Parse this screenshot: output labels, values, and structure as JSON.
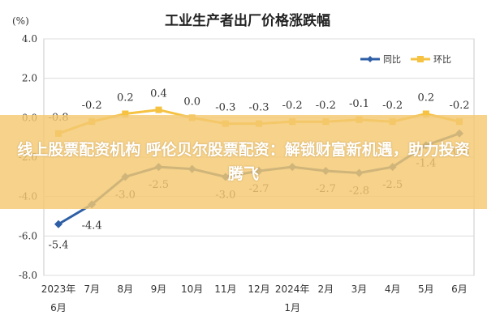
{
  "chart_data": {
    "type": "line",
    "title": "工业生产者出厂价格涨跌幅",
    "unit": "(%)",
    "ylim": [
      -8.0,
      4.0
    ],
    "yticks": [
      4.0,
      2.0,
      0.0,
      -2.0,
      -4.0,
      -6.0,
      -8.0
    ],
    "ytick_labels": [
      "4.0",
      "2.0",
      "0.0",
      "-2.0",
      "-4.0",
      "-6.0",
      "-8.0"
    ],
    "categories": [
      {
        "line1": "2023年",
        "line2": "6月"
      },
      {
        "line1": "7月",
        "line2": ""
      },
      {
        "line1": "8月",
        "line2": ""
      },
      {
        "line1": "9月",
        "line2": ""
      },
      {
        "line1": "10月",
        "line2": ""
      },
      {
        "line1": "11月",
        "line2": ""
      },
      {
        "line1": "12月",
        "line2": ""
      },
      {
        "line1": "2024年",
        "line2": "1月"
      },
      {
        "line1": "2月",
        "line2": ""
      },
      {
        "line1": "3月",
        "line2": ""
      },
      {
        "line1": "4月",
        "line2": ""
      },
      {
        "line1": "5月",
        "line2": ""
      },
      {
        "line1": "6月",
        "line2": ""
      }
    ],
    "grid": true,
    "legend_position": "top-right",
    "series": [
      {
        "name": "同比",
        "color": "#2e5fa6",
        "values": [
          -5.4,
          -4.4,
          -3.0,
          -2.5,
          -2.6,
          -3.0,
          -2.7,
          -2.5,
          -2.7,
          -2.8,
          -2.5,
          -1.4,
          -0.8
        ],
        "labels": [
          "-5.4",
          "-4.4",
          "-3.0",
          "-2.5",
          "",
          "-3.0",
          "-2.7",
          "",
          "-2.7",
          "-2.8",
          "-2.5",
          "-1.4",
          "-0.8"
        ]
      },
      {
        "name": "环比",
        "color": "#f5c242",
        "values": [
          -0.8,
          -0.2,
          0.2,
          0.4,
          0.0,
          -0.3,
          -0.3,
          -0.2,
          -0.2,
          -0.1,
          -0.2,
          0.2,
          -0.2
        ],
        "labels": [
          "-0.8",
          "-0.2",
          "0.2",
          "0.4",
          "0.0",
          "-0.3",
          "-0.3",
          "-0.2",
          "-0.2",
          "-0.1",
          "-0.2",
          "0.2",
          "-0.2"
        ]
      }
    ]
  },
  "overlay": {
    "headline": "线上股票配资机构 呼伦贝尔股票配资：解锁财富新机遇，助力投资腾飞"
  }
}
